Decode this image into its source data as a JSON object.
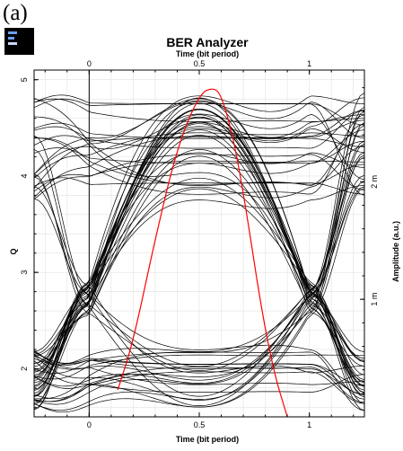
{
  "panel_label": "(a)",
  "chart_data": {
    "type": "line",
    "title": "BER Analyzer",
    "xlabel_top": "Time (bit period)",
    "xlabel": "Time (bit period)",
    "ylabel": "Q",
    "ylabel_right": "Amplitude (a.u.)",
    "xlim": [
      -0.25,
      1.25
    ],
    "ylim": [
      1.5,
      5.1
    ],
    "y2lim": [
      0,
      2.95
    ],
    "x_ticks": [
      0,
      0.5,
      1
    ],
    "x_tick_labels": [
      "0",
      "0.5",
      "1"
    ],
    "y_ticks": [
      2,
      3,
      4,
      5
    ],
    "y_tick_labels": [
      "2",
      "3",
      "4",
      "5"
    ],
    "y2_ticks": [
      1,
      2
    ],
    "y2_tick_labels": [
      "1 m",
      "2 m"
    ],
    "grid": true,
    "series": [
      {
        "kind": "q-factor",
        "color": "#ff0000",
        "x": [
          0.13,
          0.2,
          0.3,
          0.4,
          0.5,
          0.56,
          0.6,
          0.66,
          0.72,
          0.78,
          0.84,
          0.9
        ],
        "y": [
          1.78,
          2.28,
          3.35,
          4.3,
          4.85,
          4.92,
          4.85,
          4.35,
          3.55,
          2.65,
          1.95,
          1.5
        ]
      },
      {
        "kind": "eye-diagram",
        "color": "#000000",
        "upper_level_range": [
          3.75,
          4.9
        ],
        "lower_level_range": [
          1.55,
          2.2
        ],
        "trace_count": 70
      }
    ]
  }
}
